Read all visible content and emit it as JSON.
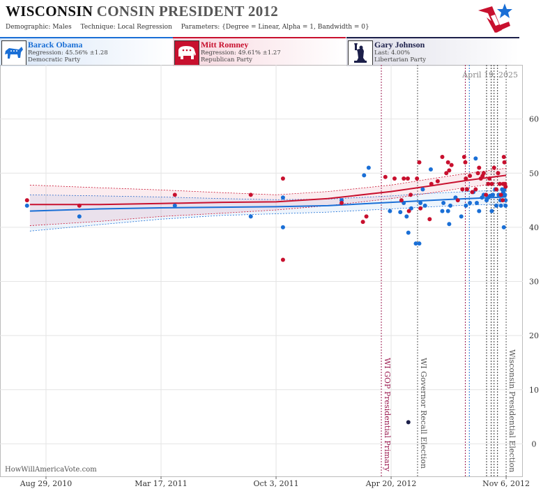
{
  "header": {
    "title_state": "WISCONSIN",
    "title_rest": "CONSIN PRESIDENT 2012",
    "demographic_label": "Demographic:",
    "demographic_value": "Males",
    "technique_label": "Technique:",
    "technique_value": "Local Regression",
    "parameters_label": "Parameters:",
    "parameters_value": "{Degree = Linear, Alpha = 1, Bandwidth = 0}"
  },
  "logo_icon": "flag-star-logo-icon",
  "candidates": [
    {
      "name": "Barack Obama",
      "line2": "Regression: 45.56% ±1.28",
      "line3": "Democratic Party",
      "color": "#1a6fd6",
      "icon": "donkey-icon"
    },
    {
      "name": "Mitt Romney",
      "line2": "Regression: 49.61% ±1.27",
      "line3": "Republican Party",
      "color": "#c8102e",
      "icon": "elephant-icon"
    },
    {
      "name": "Gary Johnson",
      "line2": "Last: 4.00%",
      "line3": "Libertarian Party",
      "color": "#1c1f4a",
      "icon": "liberty-statue-icon"
    }
  ],
  "credit": "HowWillAmericaVote.com",
  "chart_data": {
    "type": "scatter",
    "date_stamp": "April 19, 2025",
    "ylim": [
      -6,
      70
    ],
    "yticks": [
      0,
      10,
      20,
      30,
      40,
      50,
      60
    ],
    "xlim": [
      "2010-06-10",
      "2012-12-05"
    ],
    "xticks": [
      {
        "date": "2010-08-29",
        "label": "Aug 29, 2010"
      },
      {
        "date": "2011-03-17",
        "label": "Mar 17, 2011"
      },
      {
        "date": "2011-10-03",
        "label": "Oct 3, 2011"
      },
      {
        "date": "2012-04-20",
        "label": "Apr 20, 2012"
      },
      {
        "date": "2012-11-06",
        "label": "Nov 6, 2012"
      }
    ],
    "gridlines": [
      "2010-08-29",
      "2011-03-17",
      "2011-10-03",
      "2012-04-20"
    ],
    "events": [
      {
        "date": "2012-04-03",
        "label": "WI GOP Presidential Primary",
        "color": "#9b1b50"
      },
      {
        "date": "2012-06-05",
        "label": "WI Governor Recall Election",
        "color": "#555555"
      },
      {
        "date": "2012-11-06",
        "label": "Wisconsin Presidential Election",
        "color": "#555555"
      }
    ],
    "minor_event_lines": [
      {
        "date": "2012-08-27",
        "color": "#9b1b50"
      },
      {
        "date": "2012-09-03",
        "color": "#1a6fd6"
      },
      {
        "date": "2012-10-03",
        "color": "#333333"
      },
      {
        "date": "2012-10-11",
        "color": "#333333"
      },
      {
        "date": "2012-10-16",
        "color": "#333333"
      },
      {
        "date": "2012-10-22",
        "color": "#333333"
      }
    ],
    "series": [
      {
        "name": "Barack Obama",
        "color": "#1a6fd6",
        "trend": [
          [
            "2010-08-01",
            43
          ],
          [
            "2010-12-01",
            43.4
          ],
          [
            "2011-03-17",
            43.6
          ],
          [
            "2011-07-01",
            43.7
          ],
          [
            "2011-10-03",
            43.8
          ],
          [
            "2012-01-01",
            44
          ],
          [
            "2012-04-20",
            44.6
          ],
          [
            "2012-07-01",
            45
          ],
          [
            "2012-09-01",
            45.3
          ],
          [
            "2012-11-06",
            45.6
          ]
        ],
        "band_upper": [
          [
            "2010-08-01",
            46
          ],
          [
            "2010-12-01",
            45.8
          ],
          [
            "2011-03-17",
            45.6
          ],
          [
            "2011-07-01",
            45.3
          ],
          [
            "2011-10-03",
            45.1
          ],
          [
            "2012-01-01",
            45.2
          ],
          [
            "2012-04-20",
            45.8
          ],
          [
            "2012-07-01",
            46.3
          ],
          [
            "2012-09-01",
            46.6
          ],
          [
            "2012-11-06",
            46.9
          ]
        ],
        "band_lower": [
          [
            "2010-08-01",
            39.3
          ],
          [
            "2010-12-01",
            40.5
          ],
          [
            "2011-03-17",
            41.5
          ],
          [
            "2011-07-01",
            42.2
          ],
          [
            "2011-10-03",
            42.5
          ],
          [
            "2012-01-01",
            42.8
          ],
          [
            "2012-04-20",
            43.4
          ],
          [
            "2012-07-01",
            43.8
          ],
          [
            "2012-09-01",
            44.1
          ],
          [
            "2012-11-06",
            44.3
          ]
        ],
        "points": [
          [
            "2010-07-27",
            44
          ],
          [
            "2010-10-26",
            42
          ],
          [
            "2011-04-10",
            44
          ],
          [
            "2011-08-20",
            42
          ],
          [
            "2011-10-15",
            45.5
          ],
          [
            "2011-10-15",
            40
          ],
          [
            "2012-01-25",
            45
          ],
          [
            "2012-03-04",
            49.6
          ],
          [
            "2012-03-12",
            51
          ],
          [
            "2012-04-18",
            43
          ],
          [
            "2012-05-06",
            42.8
          ],
          [
            "2012-05-12",
            44.5
          ],
          [
            "2012-05-17",
            42
          ],
          [
            "2012-05-20",
            39
          ],
          [
            "2012-05-25",
            43.5
          ],
          [
            "2012-06-02",
            37
          ],
          [
            "2012-06-08",
            37
          ],
          [
            "2012-06-10",
            44.5
          ],
          [
            "2012-06-14",
            47
          ],
          [
            "2012-06-18",
            44
          ],
          [
            "2012-06-28",
            50.7
          ],
          [
            "2012-07-18",
            43
          ],
          [
            "2012-07-20",
            44.5
          ],
          [
            "2012-07-28",
            43
          ],
          [
            "2012-07-30",
            40.6
          ],
          [
            "2012-08-01",
            44
          ],
          [
            "2012-08-10",
            45.5
          ],
          [
            "2012-08-20",
            42
          ],
          [
            "2012-08-28",
            44
          ],
          [
            "2012-09-04",
            44.5
          ],
          [
            "2012-09-10",
            46.5
          ],
          [
            "2012-09-14",
            52.7
          ],
          [
            "2012-09-16",
            44.5
          ],
          [
            "2012-09-20",
            43
          ],
          [
            "2012-09-25",
            45.5
          ],
          [
            "2012-09-28",
            46
          ],
          [
            "2012-10-03",
            45
          ],
          [
            "2012-10-06",
            45.5
          ],
          [
            "2012-10-09",
            45.8
          ],
          [
            "2012-10-12",
            43
          ],
          [
            "2012-10-14",
            46
          ],
          [
            "2012-10-18",
            47
          ],
          [
            "2012-10-20",
            44
          ],
          [
            "2012-10-24",
            46
          ],
          [
            "2012-10-27",
            45
          ],
          [
            "2012-10-28",
            44
          ],
          [
            "2012-10-30",
            47
          ],
          [
            "2012-10-31",
            46
          ],
          [
            "2012-11-01",
            46.5
          ],
          [
            "2012-11-02",
            40
          ],
          [
            "2012-11-03",
            47
          ],
          [
            "2012-11-04",
            46
          ],
          [
            "2012-11-05",
            45
          ],
          [
            "2012-11-05",
            44
          ]
        ]
      },
      {
        "name": "Mitt Romney",
        "color": "#c8102e",
        "trend": [
          [
            "2010-08-01",
            44.2
          ],
          [
            "2010-12-01",
            44.2
          ],
          [
            "2011-03-17",
            44.4
          ],
          [
            "2011-07-01",
            44.6
          ],
          [
            "2011-10-03",
            44.7
          ],
          [
            "2012-01-01",
            45.3
          ],
          [
            "2012-04-20",
            46.6
          ],
          [
            "2012-07-01",
            47.7
          ],
          [
            "2012-09-01",
            48.7
          ],
          [
            "2012-11-06",
            49.6
          ]
        ],
        "band_upper": [
          [
            "2010-08-01",
            47.8
          ],
          [
            "2010-12-01",
            47.3
          ],
          [
            "2011-03-17",
            46.9
          ],
          [
            "2011-07-01",
            46.4
          ],
          [
            "2011-10-03",
            46
          ],
          [
            "2012-01-01",
            46.6
          ],
          [
            "2012-04-20",
            47.8
          ],
          [
            "2012-07-01",
            49
          ],
          [
            "2012-09-01",
            50
          ],
          [
            "2012-11-06",
            50.9
          ]
        ],
        "band_lower": [
          [
            "2010-08-01",
            40.3
          ],
          [
            "2010-12-01",
            41.1
          ],
          [
            "2011-03-17",
            42
          ],
          [
            "2011-07-01",
            42.6
          ],
          [
            "2011-10-03",
            43.2
          ],
          [
            "2012-01-01",
            44
          ],
          [
            "2012-04-20",
            45.3
          ],
          [
            "2012-07-01",
            46.4
          ],
          [
            "2012-09-01",
            47.4
          ],
          [
            "2012-11-06",
            48.3
          ]
        ],
        "points": [
          [
            "2010-07-27",
            45
          ],
          [
            "2010-10-26",
            44
          ],
          [
            "2011-04-10",
            46
          ],
          [
            "2011-08-20",
            46
          ],
          [
            "2011-10-15",
            49
          ],
          [
            "2011-10-15",
            34
          ],
          [
            "2012-01-25",
            44.5
          ],
          [
            "2012-03-02",
            41
          ],
          [
            "2012-03-08",
            42
          ],
          [
            "2012-04-10",
            49.3
          ],
          [
            "2012-04-26",
            49
          ],
          [
            "2012-05-08",
            45
          ],
          [
            "2012-05-12",
            49
          ],
          [
            "2012-05-19",
            49
          ],
          [
            "2012-05-21",
            43
          ],
          [
            "2012-05-24",
            46
          ],
          [
            "2012-06-04",
            49
          ],
          [
            "2012-06-08",
            52
          ],
          [
            "2012-06-10",
            43.5
          ],
          [
            "2012-06-26",
            41.5
          ],
          [
            "2012-06-29",
            48
          ],
          [
            "2012-07-10",
            48.5
          ],
          [
            "2012-07-18",
            53
          ],
          [
            "2012-07-25",
            50
          ],
          [
            "2012-07-28",
            52
          ],
          [
            "2012-07-30",
            50.5
          ],
          [
            "2012-08-03",
            51.5
          ],
          [
            "2012-08-14",
            45
          ],
          [
            "2012-08-22",
            47
          ],
          [
            "2012-08-25",
            53
          ],
          [
            "2012-08-27",
            52
          ],
          [
            "2012-08-28",
            49
          ],
          [
            "2012-08-30",
            47
          ],
          [
            "2012-09-04",
            49.5
          ],
          [
            "2012-09-08",
            46.5
          ],
          [
            "2012-09-14",
            47
          ],
          [
            "2012-09-18",
            50
          ],
          [
            "2012-09-20",
            51
          ],
          [
            "2012-09-23",
            49
          ],
          [
            "2012-09-26",
            49.5
          ],
          [
            "2012-09-28",
            50
          ],
          [
            "2012-10-02",
            46
          ],
          [
            "2012-10-06",
            48
          ],
          [
            "2012-10-08",
            49
          ],
          [
            "2012-10-12",
            48
          ],
          [
            "2012-10-16",
            51
          ],
          [
            "2012-10-20",
            47
          ],
          [
            "2012-10-23",
            50
          ],
          [
            "2012-10-26",
            48
          ],
          [
            "2012-10-28",
            46
          ],
          [
            "2012-10-31",
            45
          ],
          [
            "2012-11-01",
            48
          ],
          [
            "2012-11-02",
            53
          ],
          [
            "2012-11-03",
            52
          ],
          [
            "2012-11-04",
            48
          ],
          [
            "2012-11-05",
            47.5
          ]
        ]
      },
      {
        "name": "Gary Johnson",
        "color": "#1c1f4a",
        "points": [
          [
            "2012-05-20",
            4
          ]
        ]
      }
    ]
  }
}
